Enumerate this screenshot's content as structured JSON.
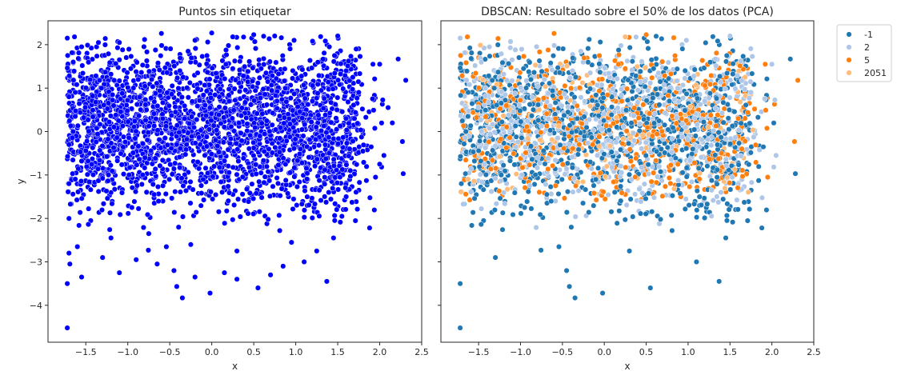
{
  "chart_data": [
    {
      "type": "scatter",
      "title": "Puntos sin etiquetar",
      "xlabel": "x",
      "ylabel": "y",
      "xlim": [
        -1.95,
        2.5
      ],
      "ylim": [
        -4.85,
        2.55
      ],
      "xticks": [
        "−1.5",
        "−1.0",
        "−0.5",
        "0.0",
        "0.5",
        "1.0",
        "1.5",
        "2.0",
        "2.5"
      ],
      "xtick_values": [
        -1.5,
        -1.0,
        -0.5,
        0.0,
        0.5,
        1.0,
        1.5,
        2.0,
        2.5
      ],
      "yticks": [
        "2",
        "1",
        "0",
        "−1",
        "−2",
        "−3",
        "−4"
      ],
      "ytick_values": [
        2,
        1,
        0,
        -1,
        -2,
        -3,
        -4
      ],
      "color": "#0000ff",
      "edge_color": "#ffffff",
      "series": [
        {
          "name": "",
          "points": [
            [
              -1.72,
              -4.52
            ],
            [
              -0.35,
              -3.83
            ],
            [
              -0.02,
              -3.72
            ],
            [
              1.37,
              -3.45
            ],
            [
              -1.72,
              -3.5
            ],
            [
              1.88,
              -2.22
            ],
            [
              2.28,
              -0.97
            ],
            [
              2.27,
              -0.23
            ],
            [
              2.31,
              1.18
            ],
            [
              2.22,
              1.67
            ],
            [
              2.0,
              1.55
            ],
            [
              1.92,
              1.55
            ],
            [
              1.5,
              2.2
            ],
            [
              0.5,
              2.23
            ],
            [
              -0.6,
              2.26
            ],
            [
              0.0,
              2.27
            ],
            [
              0.98,
              2.1
            ],
            [
              -1.72,
              2.15
            ],
            [
              -1.1,
              2.05
            ],
            [
              1.72,
              1.9
            ],
            [
              2.1,
              0.55
            ],
            [
              2.15,
              0.2
            ],
            [
              2.05,
              -0.55
            ],
            [
              2.0,
              -0.75
            ],
            [
              1.95,
              -1.05
            ],
            [
              1.8,
              -0.45
            ],
            [
              1.75,
              0.9
            ],
            [
              1.68,
              1.25
            ],
            [
              1.55,
              -1.95
            ],
            [
              1.45,
              -2.45
            ],
            [
              1.25,
              -2.75
            ],
            [
              1.1,
              -3.0
            ],
            [
              0.85,
              -3.1
            ],
            [
              0.7,
              -3.3
            ],
            [
              0.55,
              -3.6
            ],
            [
              0.3,
              -3.4
            ],
            [
              0.15,
              -3.25
            ],
            [
              -0.2,
              -3.35
            ],
            [
              -0.45,
              -3.2
            ],
            [
              -0.65,
              -3.05
            ],
            [
              -0.9,
              -2.95
            ],
            [
              -1.1,
              -3.25
            ],
            [
              -1.3,
              -2.9
            ],
            [
              -1.55,
              -3.35
            ],
            [
              -1.6,
              -2.65
            ],
            [
              -1.2,
              -2.45
            ],
            [
              -0.75,
              -2.35
            ],
            [
              -0.25,
              -2.6
            ],
            [
              0.3,
              -2.75
            ],
            [
              0.95,
              -2.55
            ],
            [
              1.6,
              -1.5
            ],
            [
              1.65,
              -0.9
            ],
            [
              1.7,
              0.3
            ],
            [
              1.6,
              1.4
            ],
            [
              1.4,
              1.95
            ],
            [
              1.2,
              2.08
            ],
            [
              0.75,
              2.2
            ],
            [
              0.25,
              2.18
            ],
            [
              -0.2,
              2.1
            ],
            [
              -0.8,
              2.12
            ],
            [
              -1.35,
              2.05
            ],
            [
              -1.55,
              1.95
            ],
            [
              -1.65,
              1.6
            ],
            [
              -1.7,
              0.8
            ],
            [
              -1.7,
              -0.3
            ],
            [
              -1.7,
              -1.2
            ],
            [
              -1.7,
              -2.0
            ],
            [
              -1.7,
              -2.8
            ],
            [
              -1.69,
              -3.05
            ]
          ]
        }
      ]
    },
    {
      "type": "scatter",
      "title": "DBSCAN: Resultado sobre el 50% de los datos (PCA)",
      "xlabel": "x",
      "ylabel": "",
      "xlim": [
        -1.95,
        2.5
      ],
      "ylim": [
        -4.85,
        2.55
      ],
      "xticks": [
        "−1.5",
        "−1.0",
        "−0.5",
        "0.0",
        "0.5",
        "1.0",
        "1.5",
        "2.0",
        "2.5"
      ],
      "xtick_values": [
        -1.5,
        -1.0,
        -0.5,
        0.0,
        0.5,
        1.0,
        1.5,
        2.0,
        2.5
      ],
      "legend_position": "upper right outside",
      "series": [
        {
          "name": "-1",
          "color": "#1f77b4",
          "points": [
            [
              -1.72,
              -4.52
            ],
            [
              -0.35,
              -3.83
            ],
            [
              -0.02,
              -3.72
            ],
            [
              1.37,
              -3.45
            ],
            [
              -1.72,
              -3.5
            ],
            [
              1.88,
              -2.22
            ],
            [
              2.28,
              -0.97
            ],
            [
              2.22,
              1.67
            ],
            [
              1.1,
              -3.0
            ],
            [
              0.55,
              -3.6
            ],
            [
              -0.45,
              -3.2
            ],
            [
              -1.3,
              -2.9
            ],
            [
              1.45,
              -2.45
            ],
            [
              0.3,
              -2.75
            ]
          ]
        },
        {
          "name": "2",
          "color": "#aec7e8",
          "points": [
            [
              2.0,
              1.55
            ],
            [
              1.5,
              2.2
            ],
            [
              0.98,
              2.1
            ],
            [
              -1.72,
              2.15
            ],
            [
              2.05,
              -0.55
            ],
            [
              1.75,
              0.9
            ]
          ]
        },
        {
          "name": "5",
          "color": "#ff7f0e",
          "points": [
            [
              2.31,
              1.18
            ],
            [
              2.27,
              -0.23
            ],
            [
              1.92,
              1.55
            ],
            [
              0.5,
              2.23
            ],
            [
              -0.6,
              2.26
            ],
            [
              1.95,
              -1.05
            ]
          ]
        },
        {
          "name": "2051",
          "color": "#ffbb78",
          "points": [
            [
              1.68,
              1.25
            ],
            [
              0.25,
              2.18
            ]
          ]
        }
      ]
    }
  ]
}
